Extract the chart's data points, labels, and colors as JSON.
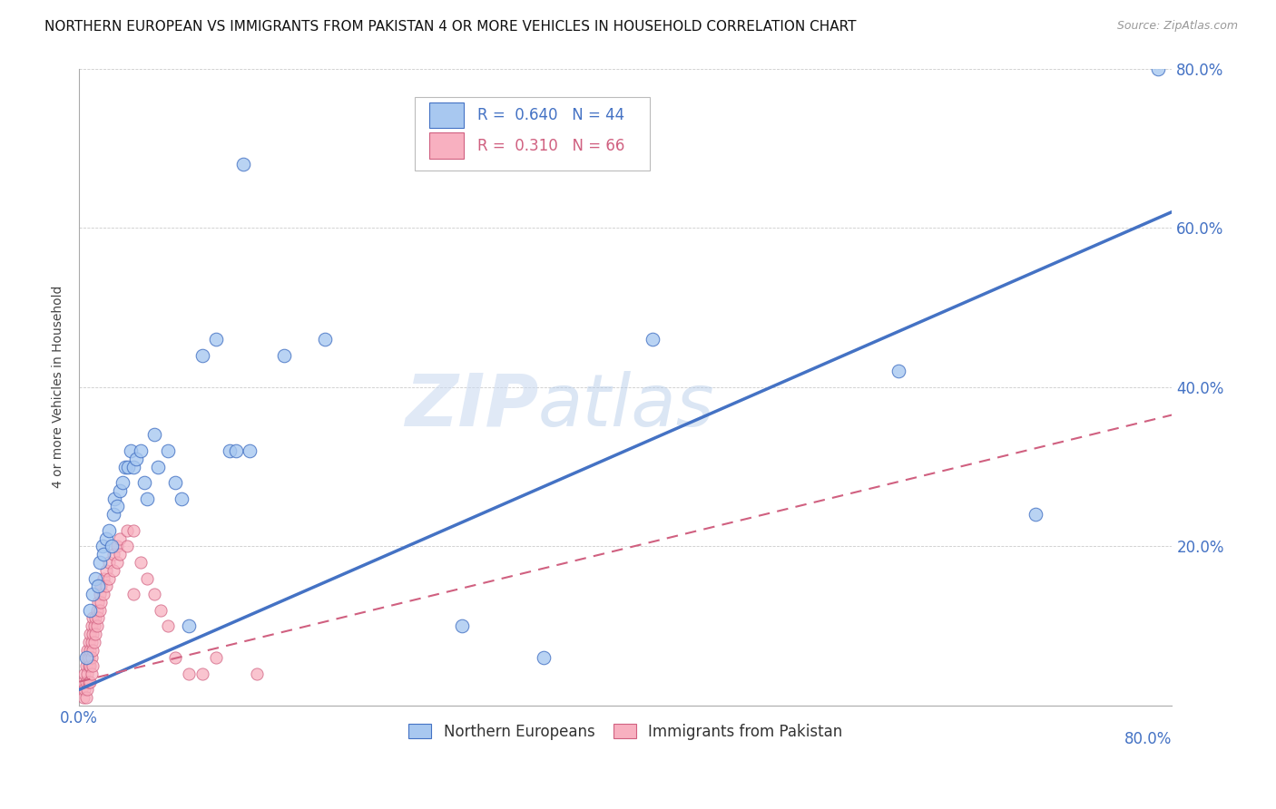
{
  "title": "NORTHERN EUROPEAN VS IMMIGRANTS FROM PAKISTAN 4 OR MORE VEHICLES IN HOUSEHOLD CORRELATION CHART",
  "source": "Source: ZipAtlas.com",
  "ylabel": "4 or more Vehicles in Household",
  "legend_ne": "Northern Europeans",
  "legend_pk": "Immigrants from Pakistan",
  "R_ne": 0.64,
  "N_ne": 44,
  "R_pk": 0.31,
  "N_pk": 66,
  "xmin": 0.0,
  "xmax": 0.8,
  "ymin": 0.0,
  "ymax": 0.8,
  "color_ne": "#a8c8f0",
  "color_pk": "#f8b0c0",
  "line_color_ne": "#4472c4",
  "line_color_pk": "#d06080",
  "watermark_1": "ZIP",
  "watermark_2": "atlas",
  "ne_line_x0": 0.0,
  "ne_line_y0": 0.02,
  "ne_line_x1": 0.8,
  "ne_line_y1": 0.62,
  "pk_line_x0": 0.0,
  "pk_line_y0": 0.03,
  "pk_line_x1": 0.8,
  "pk_line_y1": 0.365,
  "ne_points": [
    [
      0.005,
      0.06
    ],
    [
      0.008,
      0.12
    ],
    [
      0.01,
      0.14
    ],
    [
      0.012,
      0.16
    ],
    [
      0.014,
      0.15
    ],
    [
      0.015,
      0.18
    ],
    [
      0.017,
      0.2
    ],
    [
      0.018,
      0.19
    ],
    [
      0.02,
      0.21
    ],
    [
      0.022,
      0.22
    ],
    [
      0.024,
      0.2
    ],
    [
      0.025,
      0.24
    ],
    [
      0.026,
      0.26
    ],
    [
      0.028,
      0.25
    ],
    [
      0.03,
      0.27
    ],
    [
      0.032,
      0.28
    ],
    [
      0.034,
      0.3
    ],
    [
      0.036,
      0.3
    ],
    [
      0.038,
      0.32
    ],
    [
      0.04,
      0.3
    ],
    [
      0.042,
      0.31
    ],
    [
      0.045,
      0.32
    ],
    [
      0.048,
      0.28
    ],
    [
      0.05,
      0.26
    ],
    [
      0.055,
      0.34
    ],
    [
      0.058,
      0.3
    ],
    [
      0.065,
      0.32
    ],
    [
      0.07,
      0.28
    ],
    [
      0.075,
      0.26
    ],
    [
      0.08,
      0.1
    ],
    [
      0.09,
      0.44
    ],
    [
      0.1,
      0.46
    ],
    [
      0.11,
      0.32
    ],
    [
      0.115,
      0.32
    ],
    [
      0.125,
      0.32
    ],
    [
      0.15,
      0.44
    ],
    [
      0.18,
      0.46
    ],
    [
      0.12,
      0.68
    ],
    [
      0.28,
      0.1
    ],
    [
      0.34,
      0.06
    ],
    [
      0.42,
      0.46
    ],
    [
      0.6,
      0.42
    ],
    [
      0.7,
      0.24
    ],
    [
      0.79,
      0.8
    ]
  ],
  "pk_points": [
    [
      0.002,
      0.02
    ],
    [
      0.003,
      0.03
    ],
    [
      0.003,
      0.01
    ],
    [
      0.004,
      0.04
    ],
    [
      0.004,
      0.02
    ],
    [
      0.005,
      0.05
    ],
    [
      0.005,
      0.03
    ],
    [
      0.005,
      0.01
    ],
    [
      0.006,
      0.06
    ],
    [
      0.006,
      0.04
    ],
    [
      0.006,
      0.02
    ],
    [
      0.006,
      0.07
    ],
    [
      0.007,
      0.05
    ],
    [
      0.007,
      0.03
    ],
    [
      0.007,
      0.08
    ],
    [
      0.007,
      0.06
    ],
    [
      0.008,
      0.07
    ],
    [
      0.008,
      0.05
    ],
    [
      0.008,
      0.03
    ],
    [
      0.008,
      0.09
    ],
    [
      0.009,
      0.08
    ],
    [
      0.009,
      0.06
    ],
    [
      0.009,
      0.04
    ],
    [
      0.009,
      0.1
    ],
    [
      0.01,
      0.09
    ],
    [
      0.01,
      0.07
    ],
    [
      0.01,
      0.05
    ],
    [
      0.01,
      0.11
    ],
    [
      0.011,
      0.1
    ],
    [
      0.011,
      0.08
    ],
    [
      0.012,
      0.11
    ],
    [
      0.012,
      0.09
    ],
    [
      0.013,
      0.12
    ],
    [
      0.013,
      0.1
    ],
    [
      0.014,
      0.13
    ],
    [
      0.014,
      0.11
    ],
    [
      0.015,
      0.14
    ],
    [
      0.015,
      0.12
    ],
    [
      0.016,
      0.15
    ],
    [
      0.016,
      0.13
    ],
    [
      0.018,
      0.16
    ],
    [
      0.018,
      0.14
    ],
    [
      0.02,
      0.17
    ],
    [
      0.02,
      0.15
    ],
    [
      0.022,
      0.18
    ],
    [
      0.022,
      0.16
    ],
    [
      0.025,
      0.19
    ],
    [
      0.025,
      0.17
    ],
    [
      0.028,
      0.2
    ],
    [
      0.028,
      0.18
    ],
    [
      0.03,
      0.21
    ],
    [
      0.03,
      0.19
    ],
    [
      0.035,
      0.22
    ],
    [
      0.035,
      0.2
    ],
    [
      0.04,
      0.22
    ],
    [
      0.04,
      0.14
    ],
    [
      0.045,
      0.18
    ],
    [
      0.05,
      0.16
    ],
    [
      0.055,
      0.14
    ],
    [
      0.06,
      0.12
    ],
    [
      0.065,
      0.1
    ],
    [
      0.07,
      0.06
    ],
    [
      0.08,
      0.04
    ],
    [
      0.09,
      0.04
    ],
    [
      0.1,
      0.06
    ],
    [
      0.13,
      0.04
    ]
  ]
}
